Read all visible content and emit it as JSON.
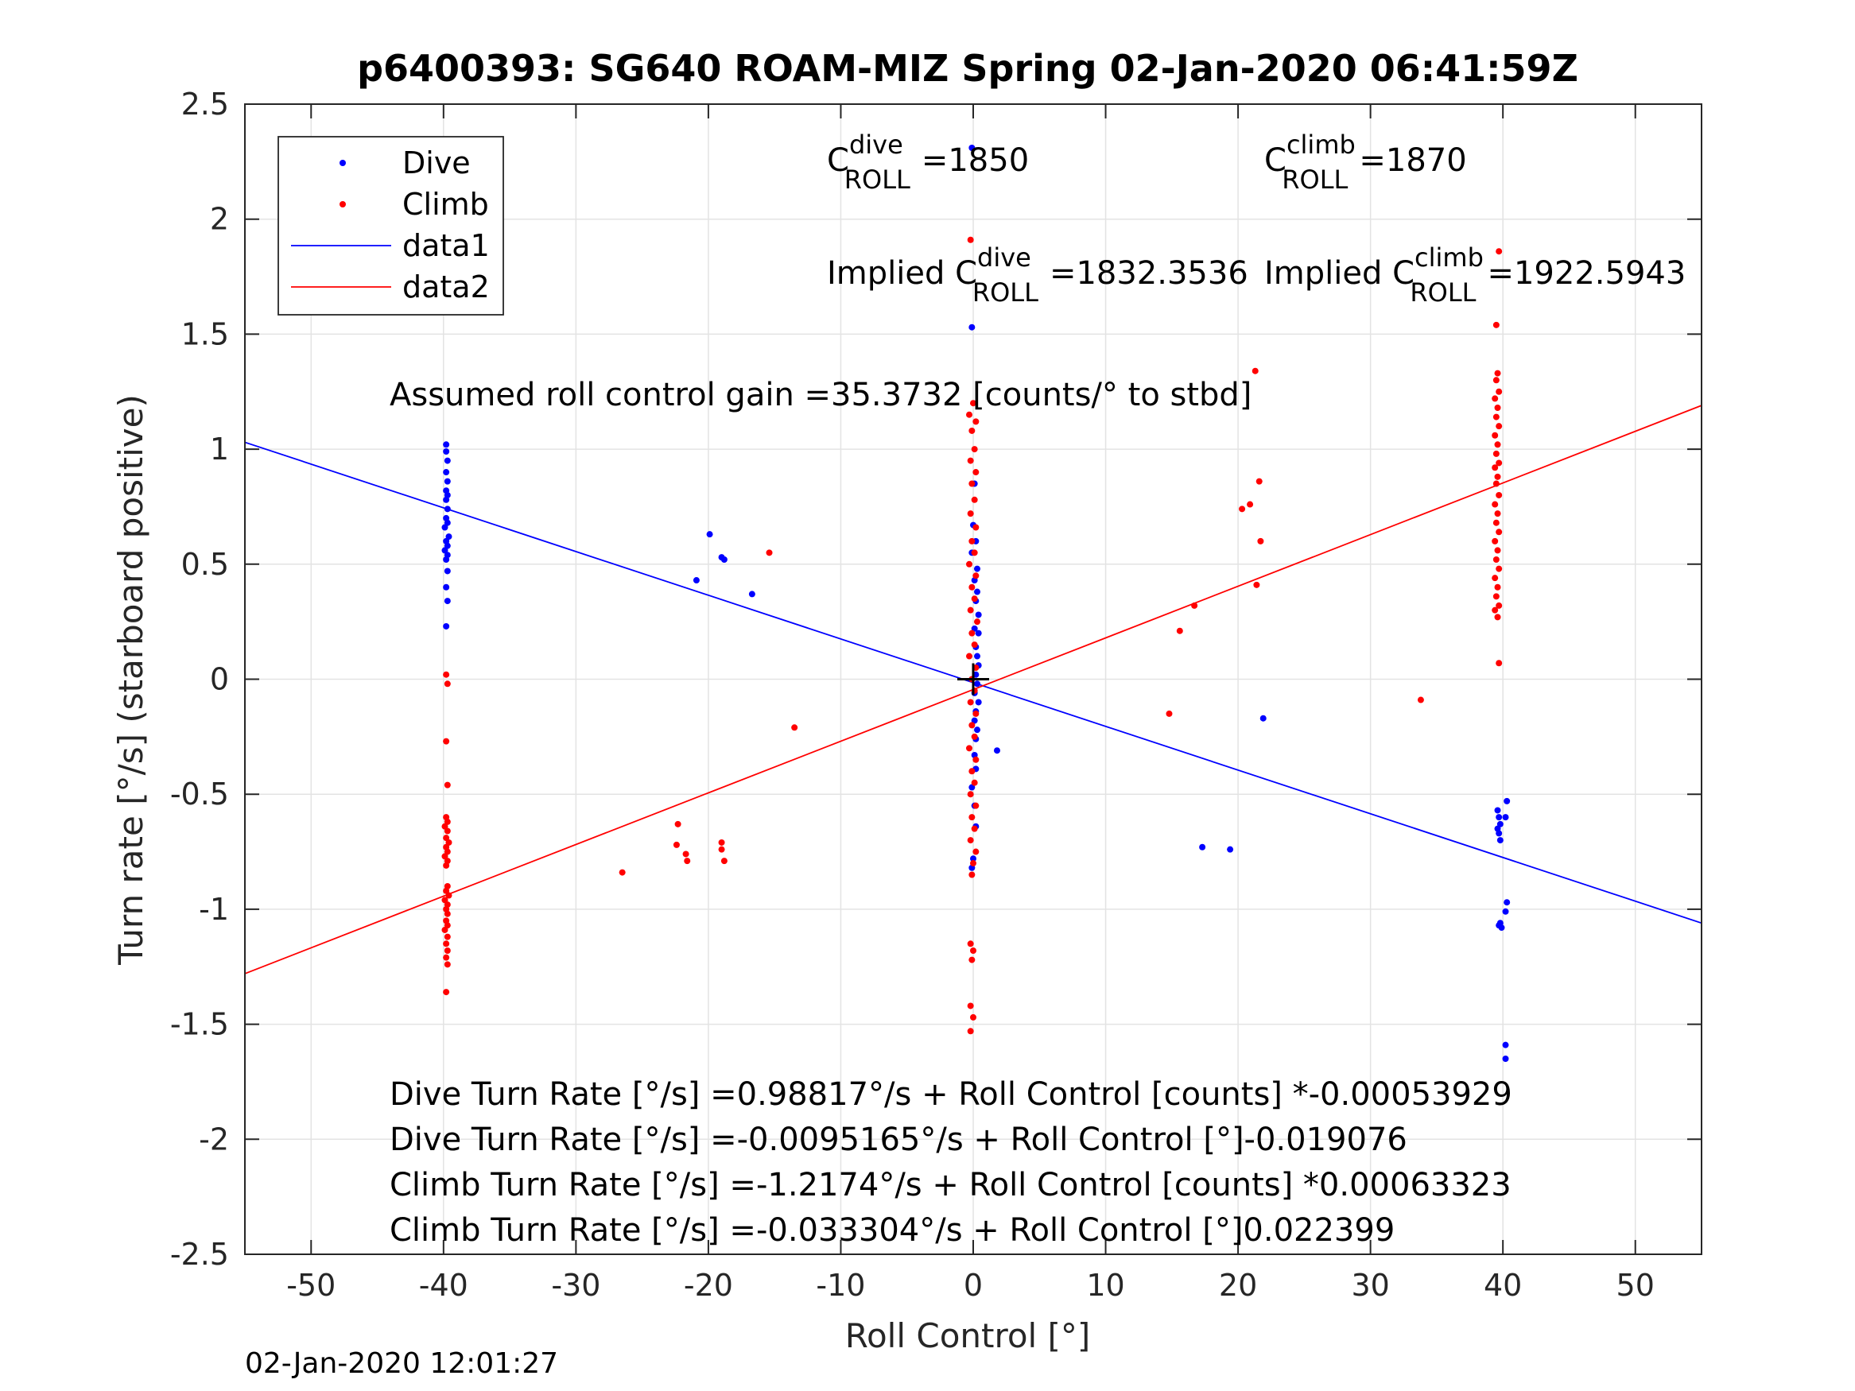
{
  "chart_data": {
    "type": "scatter",
    "title": "p6400393: SG640 ROAM-MIZ Spring 02-Jan-2020 06:41:59Z",
    "xlabel": "Roll Control [°]",
    "ylabel": "Turn rate [°/s] (starboard positive)",
    "xlim": [
      -55,
      55
    ],
    "ylim": [
      -2.5,
      2.5
    ],
    "xticks": [
      -50,
      -40,
      -30,
      -20,
      -10,
      0,
      10,
      20,
      30,
      40,
      50
    ],
    "xtick_labels": [
      "-50",
      "-40",
      "-30",
      "-20",
      "-10",
      "0",
      "10",
      "20",
      "30",
      "40",
      "50"
    ],
    "yticks": [
      -2.5,
      -2,
      -1.5,
      -1,
      -0.5,
      0,
      0.5,
      1,
      1.5,
      2,
      2.5
    ],
    "ytick_labels": [
      "-2.5",
      "-2",
      "-1.5",
      "-1",
      "-0.5",
      "0",
      "0.5",
      "1",
      "1.5",
      "2",
      "2.5"
    ],
    "grid": true,
    "legend_position": "top-left",
    "legend": [
      {
        "label": "Dive",
        "kind": "marker",
        "color": "#0000ff"
      },
      {
        "label": "Climb",
        "kind": "marker",
        "color": "#ff0000"
      },
      {
        "label": "data1",
        "kind": "line",
        "color": "#0000ff"
      },
      {
        "label": "data2",
        "kind": "line",
        "color": "#ff0000"
      }
    ],
    "series": [
      {
        "name": "Dive",
        "style": "points",
        "color": "#0000ff",
        "points": [
          [
            -39.8,
            1.02
          ],
          [
            -39.8,
            0.99
          ],
          [
            -39.7,
            0.95
          ],
          [
            -39.8,
            0.9
          ],
          [
            -39.7,
            0.86
          ],
          [
            -39.8,
            0.82
          ],
          [
            -39.7,
            0.8
          ],
          [
            -39.8,
            0.78
          ],
          [
            -39.7,
            0.74
          ],
          [
            -39.8,
            0.7
          ],
          [
            -39.7,
            0.68
          ],
          [
            -39.9,
            0.66
          ],
          [
            -39.6,
            0.62
          ],
          [
            -39.8,
            0.6
          ],
          [
            -39.7,
            0.58
          ],
          [
            -39.9,
            0.56
          ],
          [
            -39.7,
            0.54
          ],
          [
            -39.8,
            0.52
          ],
          [
            -39.7,
            0.47
          ],
          [
            -39.8,
            0.4
          ],
          [
            -39.7,
            0.34
          ],
          [
            -39.8,
            0.23
          ],
          [
            -19.9,
            0.63
          ],
          [
            -19.0,
            0.53
          ],
          [
            -18.8,
            0.52
          ],
          [
            -20.9,
            0.43
          ],
          [
            -16.7,
            0.37
          ],
          [
            -0.1,
            2.31
          ],
          [
            -0.1,
            1.53
          ],
          [
            0.1,
            0.85
          ],
          [
            0.0,
            0.67
          ],
          [
            0.2,
            0.6
          ],
          [
            -0.1,
            0.55
          ],
          [
            0.3,
            0.48
          ],
          [
            0.1,
            0.43
          ],
          [
            0.3,
            0.38
          ],
          [
            0.2,
            0.34
          ],
          [
            0.4,
            0.28
          ],
          [
            0.1,
            0.22
          ],
          [
            0.4,
            0.2
          ],
          [
            0.2,
            0.14
          ],
          [
            0.3,
            0.1
          ],
          [
            0.4,
            0.06
          ],
          [
            0.2,
            0.02
          ],
          [
            0.3,
            -0.02
          ],
          [
            0.1,
            -0.06
          ],
          [
            0.4,
            -0.1
          ],
          [
            0.2,
            -0.14
          ],
          [
            0.1,
            -0.18
          ],
          [
            0.3,
            -0.22
          ],
          [
            0.2,
            -0.26
          ],
          [
            1.8,
            -0.31
          ],
          [
            0.1,
            -0.33
          ],
          [
            0.2,
            -0.39
          ],
          [
            -0.1,
            -0.47
          ],
          [
            0.1,
            -0.55
          ],
          [
            0.2,
            -0.64
          ],
          [
            0.0,
            -0.78
          ],
          [
            -0.1,
            -0.82
          ],
          [
            17.3,
            -0.73
          ],
          [
            19.4,
            -0.74
          ],
          [
            21.9,
            -0.17
          ],
          [
            39.6,
            -0.57
          ],
          [
            40.3,
            -0.53
          ],
          [
            40.2,
            -0.6
          ],
          [
            39.7,
            -0.6
          ],
          [
            39.8,
            -0.63
          ],
          [
            39.6,
            -0.65
          ],
          [
            39.7,
            -0.67
          ],
          [
            39.8,
            -0.7
          ],
          [
            40.3,
            -0.97
          ],
          [
            40.2,
            -1.01
          ],
          [
            39.8,
            -1.06
          ],
          [
            39.7,
            -1.07
          ],
          [
            39.9,
            -1.08
          ],
          [
            40.2,
            -1.59
          ],
          [
            40.2,
            -1.65
          ]
        ]
      },
      {
        "name": "Climb",
        "style": "points",
        "color": "#ff0000",
        "points": [
          [
            -39.8,
            0.02
          ],
          [
            -39.7,
            -0.02
          ],
          [
            -39.8,
            -0.27
          ],
          [
            -39.7,
            -0.46
          ],
          [
            -39.8,
            -0.6
          ],
          [
            -39.7,
            -0.62
          ],
          [
            -39.9,
            -0.64
          ],
          [
            -39.7,
            -0.66
          ],
          [
            -39.8,
            -0.69
          ],
          [
            -39.6,
            -0.71
          ],
          [
            -39.8,
            -0.73
          ],
          [
            -39.7,
            -0.75
          ],
          [
            -39.9,
            -0.77
          ],
          [
            -39.7,
            -0.79
          ],
          [
            -39.8,
            -0.81
          ],
          [
            -39.7,
            -0.9
          ],
          [
            -39.8,
            -0.92
          ],
          [
            -39.6,
            -0.94
          ],
          [
            -39.9,
            -0.96
          ],
          [
            -39.7,
            -0.98
          ],
          [
            -39.8,
            -1.0
          ],
          [
            -39.7,
            -1.02
          ],
          [
            -39.8,
            -1.05
          ],
          [
            -39.7,
            -1.07
          ],
          [
            -39.9,
            -1.09
          ],
          [
            -39.7,
            -1.12
          ],
          [
            -39.8,
            -1.15
          ],
          [
            -39.7,
            -1.18
          ],
          [
            -39.8,
            -1.21
          ],
          [
            -39.7,
            -1.24
          ],
          [
            -39.8,
            -1.36
          ],
          [
            -15.4,
            0.55
          ],
          [
            -13.5,
            -0.21
          ],
          [
            -26.5,
            -0.84
          ],
          [
            -22.3,
            -0.63
          ],
          [
            -22.4,
            -0.72
          ],
          [
            -21.7,
            -0.76
          ],
          [
            -21.6,
            -0.79
          ],
          [
            -19.0,
            -0.71
          ],
          [
            -19.0,
            -0.74
          ],
          [
            -18.8,
            -0.79
          ],
          [
            -0.2,
            1.91
          ],
          [
            0.0,
            1.2
          ],
          [
            -0.3,
            1.15
          ],
          [
            0.2,
            1.12
          ],
          [
            -0.1,
            1.08
          ],
          [
            0.1,
            1.0
          ],
          [
            -0.2,
            0.95
          ],
          [
            0.2,
            0.9
          ],
          [
            -0.1,
            0.85
          ],
          [
            0.1,
            0.78
          ],
          [
            -0.2,
            0.72
          ],
          [
            0.2,
            0.66
          ],
          [
            -0.1,
            0.6
          ],
          [
            0.1,
            0.55
          ],
          [
            -0.3,
            0.5
          ],
          [
            0.2,
            0.45
          ],
          [
            -0.1,
            0.4
          ],
          [
            0.1,
            0.35
          ],
          [
            -0.2,
            0.3
          ],
          [
            0.3,
            0.25
          ],
          [
            -0.1,
            0.2
          ],
          [
            0.1,
            0.15
          ],
          [
            -0.3,
            0.1
          ],
          [
            0.2,
            0.05
          ],
          [
            -0.1,
            0.0
          ],
          [
            0.1,
            -0.05
          ],
          [
            -0.2,
            -0.1
          ],
          [
            0.2,
            -0.15
          ],
          [
            -0.1,
            -0.2
          ],
          [
            0.1,
            -0.25
          ],
          [
            -0.3,
            -0.3
          ],
          [
            0.2,
            -0.35
          ],
          [
            -0.1,
            -0.4
          ],
          [
            0.1,
            -0.45
          ],
          [
            -0.2,
            -0.5
          ],
          [
            0.2,
            -0.55
          ],
          [
            -0.1,
            -0.6
          ],
          [
            0.1,
            -0.65
          ],
          [
            -0.2,
            -0.7
          ],
          [
            0.2,
            -0.75
          ],
          [
            0.0,
            -0.8
          ],
          [
            -0.1,
            -0.85
          ],
          [
            -0.2,
            -1.15
          ],
          [
            0.0,
            -1.18
          ],
          [
            -0.1,
            -1.22
          ],
          [
            -0.2,
            -1.42
          ],
          [
            0.0,
            -1.47
          ],
          [
            -0.2,
            -1.53
          ],
          [
            21.3,
            1.34
          ],
          [
            21.6,
            0.86
          ],
          [
            20.9,
            0.76
          ],
          [
            20.3,
            0.74
          ],
          [
            21.7,
            0.6
          ],
          [
            21.4,
            0.41
          ],
          [
            16.7,
            0.32
          ],
          [
            15.6,
            0.21
          ],
          [
            14.8,
            -0.15
          ],
          [
            33.8,
            -0.09
          ],
          [
            39.7,
            1.86
          ],
          [
            39.5,
            1.54
          ],
          [
            39.6,
            1.33
          ],
          [
            39.5,
            1.3
          ],
          [
            39.7,
            1.25
          ],
          [
            39.4,
            1.22
          ],
          [
            39.6,
            1.18
          ],
          [
            39.5,
            1.14
          ],
          [
            39.7,
            1.1
          ],
          [
            39.4,
            1.06
          ],
          [
            39.6,
            1.02
          ],
          [
            39.5,
            0.98
          ],
          [
            39.7,
            0.94
          ],
          [
            39.4,
            0.92
          ],
          [
            39.6,
            0.88
          ],
          [
            39.5,
            0.85
          ],
          [
            39.7,
            0.8
          ],
          [
            39.4,
            0.76
          ],
          [
            39.6,
            0.72
          ],
          [
            39.5,
            0.68
          ],
          [
            39.7,
            0.64
          ],
          [
            39.4,
            0.6
          ],
          [
            39.6,
            0.56
          ],
          [
            39.5,
            0.52
          ],
          [
            39.7,
            0.48
          ],
          [
            39.4,
            0.44
          ],
          [
            39.6,
            0.4
          ],
          [
            39.5,
            0.36
          ],
          [
            39.7,
            0.32
          ],
          [
            39.4,
            0.3
          ],
          [
            39.6,
            0.27
          ],
          [
            39.7,
            0.07
          ]
        ]
      },
      {
        "name": "data1",
        "style": "line",
        "color": "#0000ff",
        "points": [
          [
            -55,
            1.03
          ],
          [
            55,
            -1.06
          ]
        ]
      },
      {
        "name": "data2",
        "style": "line",
        "color": "#ff0000",
        "points": [
          [
            -55,
            -1.28
          ],
          [
            55,
            1.19
          ]
        ]
      }
    ],
    "origin_marker": {
      "x": 0,
      "y": 0,
      "symbol": "+",
      "color": "#000000"
    },
    "annotations": {
      "c_dive": {
        "base": "C",
        "sup": "dive",
        "sub": "ROLL",
        "value": "=1850"
      },
      "c_climb": {
        "base": "C",
        "sup": "climb",
        "sub": "ROLL",
        "value": "=1870"
      },
      "implied_dive": {
        "prefix": "Implied C",
        "sup": "dive",
        "sub": "ROLL",
        "value": "=1832.3536"
      },
      "implied_climb": {
        "prefix": "Implied C",
        "sup": "climb",
        "sub": "ROLL",
        "value": "=1922.5943"
      },
      "gain": "Assumed roll control gain =35.3732 [counts/° to stbd]",
      "fit_lines": [
        "Dive Turn Rate [°/s] =0.98817°/s + Roll Control [counts] *-0.00053929",
        "Dive Turn Rate [°/s] =-0.0095165°/s + Roll Control [°]-0.019076",
        "Climb Turn Rate [°/s] =-1.2174°/s + Roll Control [counts] *0.00063323",
        "Climb Turn Rate [°/s] =-0.033304°/s + Roll Control [°]0.022399"
      ]
    }
  },
  "footer": {
    "timestamp": "02-Jan-2020 12:01:27"
  }
}
